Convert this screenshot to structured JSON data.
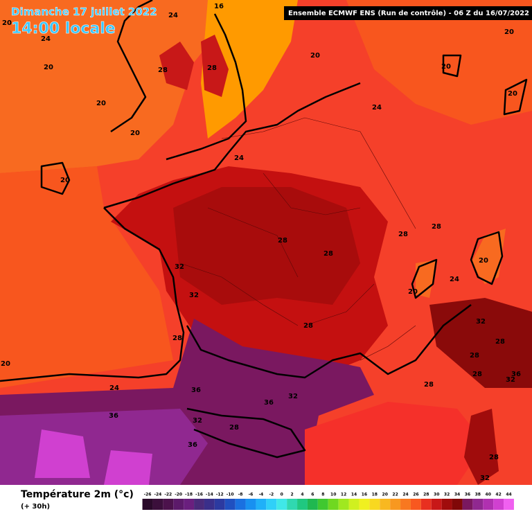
{
  "header": {
    "date": "Dimanche 17 juillet 2022",
    "time": "14:00 locale",
    "model": "Ensemble ECMWF ENS  (Run de contrôle)  -  06 Z du 16/07/2022"
  },
  "map": {
    "labels": [
      20,
      24,
      16,
      24,
      20,
      28,
      28,
      20,
      20,
      20,
      20,
      20,
      20,
      24,
      24,
      20,
      28,
      28,
      28,
      28,
      32,
      20,
      24,
      20,
      32,
      28,
      32,
      28,
      28,
      28,
      28,
      36,
      32,
      20,
      24,
      36,
      36,
      32,
      28,
      36,
      32,
      28,
      36,
      28,
      32
    ]
  },
  "legend": {
    "title": "Température 2m (°c)",
    "subtitle": "(+ 30h)",
    "ticks": [
      -26,
      -24,
      -22,
      -20,
      -18,
      -16,
      -14,
      -12,
      -10,
      -8,
      -6,
      -4,
      -2,
      0,
      2,
      4,
      6,
      8,
      10,
      12,
      14,
      16,
      18,
      20,
      22,
      24,
      26,
      28,
      30,
      32,
      34,
      36,
      38,
      40,
      42,
      44
    ],
    "colors": [
      "#2a0a2a",
      "#3b0f3b",
      "#4c124c",
      "#5c1a6a",
      "#6a1f7e",
      "#4a2a7a",
      "#3a2f8a",
      "#2c3aa0",
      "#2050c0",
      "#1a70e0",
      "#1890f0",
      "#20b0f8",
      "#30d0f8",
      "#40e8e8",
      "#30d8b0",
      "#20c880",
      "#20b850",
      "#40c830",
      "#70d820",
      "#a0e820",
      "#d0f020",
      "#f0f020",
      "#f8d820",
      "#f8b820",
      "#f89820",
      "#f87820",
      "#f85820",
      "#e83020",
      "#c81818",
      "#a00c0c",
      "#800808",
      "#7a1860",
      "#902890",
      "#b030b0",
      "#d040d0",
      "#f060f0"
    ]
  }
}
